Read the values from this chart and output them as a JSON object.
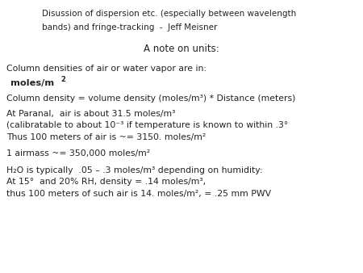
{
  "bg_color": "#ffffff",
  "figsize": [
    4.5,
    3.38
  ],
  "dpi": 100,
  "title_line1": "Disussion of dispersion etc. (especially between wavelength",
  "title_line2": "bands) and fringe-tracking  -  Jeff Meisner",
  "subtitle": "A note on units:",
  "title_size": 7.5,
  "subtitle_size": 8.5,
  "body_size": 7.8,
  "bold_size": 8.2,
  "text_color": "#222222"
}
